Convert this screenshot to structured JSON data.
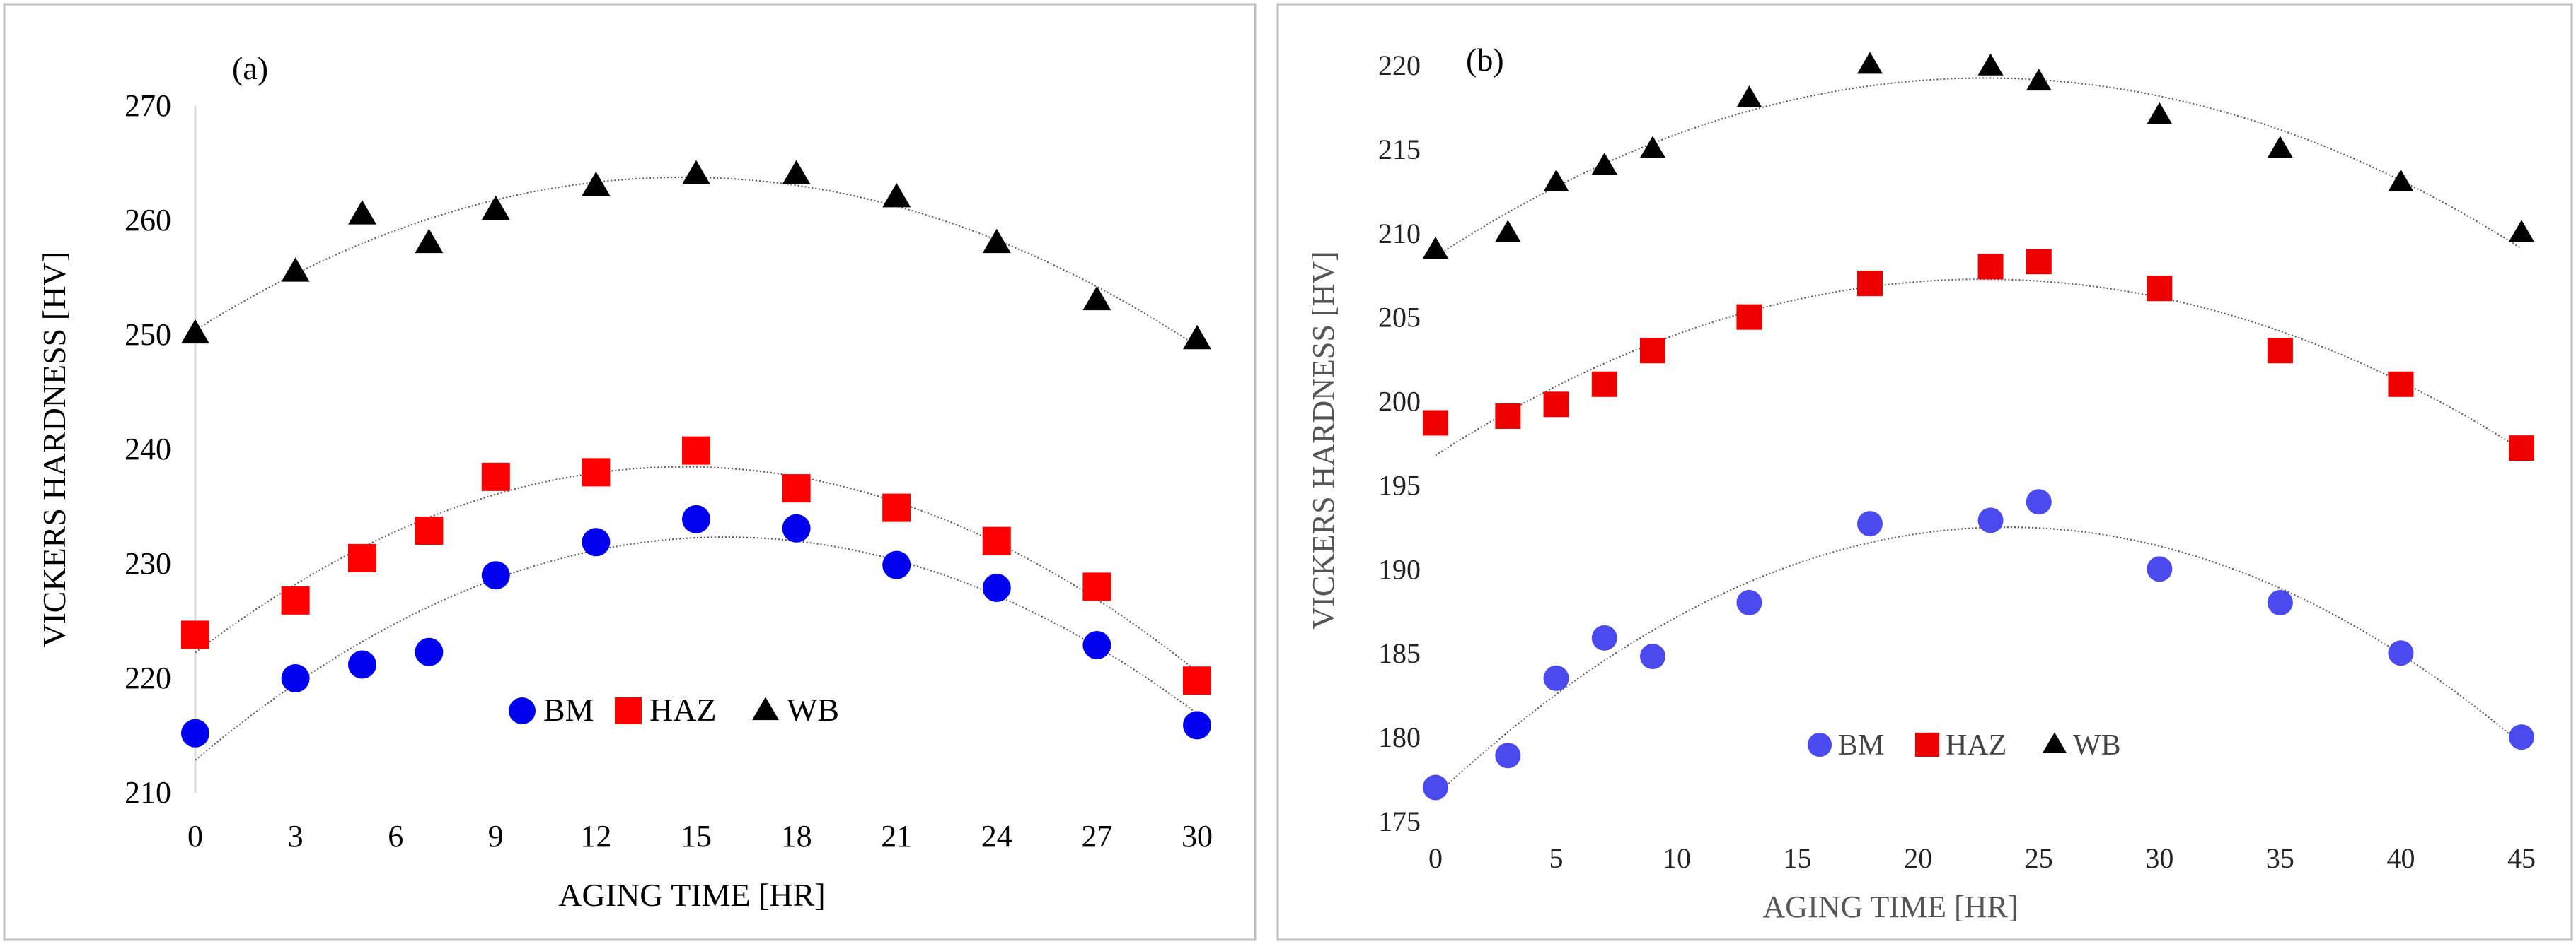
{
  "chart_data": [
    {
      "type": "scatter",
      "panel_label": "(a)",
      "xlabel": "AGING TIME [HR]",
      "ylabel": "VICKERS HARDNESS [HV]",
      "xlim": [
        0,
        30
      ],
      "ylim": [
        210,
        270
      ],
      "xticks": [
        "0",
        "3",
        "6",
        "9",
        "12",
        "15",
        "18",
        "21",
        "24",
        "27",
        "30"
      ],
      "yticks": [
        "210",
        "220",
        "230",
        "240",
        "250",
        "260",
        "270"
      ],
      "legend_position": "bottom-center",
      "trendline": "polynomial",
      "series": [
        {
          "name": "BM",
          "marker": "circle",
          "color": "#0000ee",
          "x": [
            0,
            3,
            5,
            7,
            9,
            12,
            15,
            18,
            21,
            24,
            27,
            30
          ],
          "y": [
            215.2,
            220,
            221.2,
            222.3,
            229,
            231.9,
            233.9,
            233.1,
            229.9,
            227.9,
            222.9,
            215.9
          ]
        },
        {
          "name": "HAZ",
          "marker": "square",
          "color": "#ff0000",
          "x": [
            0,
            3,
            5,
            7,
            9,
            12,
            15,
            18,
            21,
            24,
            27,
            30
          ],
          "y": [
            223.8,
            226.8,
            230.5,
            232.9,
            237.6,
            238,
            239.9,
            236.6,
            234.9,
            232,
            228,
            219.8
          ]
        },
        {
          "name": "WB",
          "marker": "triangle",
          "color": "#000000",
          "x": [
            0,
            3,
            5,
            7,
            9,
            12,
            15,
            18,
            21,
            24,
            27,
            30
          ],
          "y": [
            250.1,
            255.5,
            260.5,
            258,
            260.9,
            263,
            264,
            264,
            262,
            258,
            253,
            249.6
          ]
        }
      ]
    },
    {
      "type": "scatter",
      "panel_label": "(b)",
      "xlabel": "AGING TIME [HR]",
      "ylabel": "VICKERS HARDNESS [HV]",
      "xlim": [
        0,
        45
      ],
      "ylim": [
        175,
        220
      ],
      "xticks": [
        "0",
        "5",
        "10",
        "15",
        "20",
        "25",
        "30",
        "35",
        "40",
        "45"
      ],
      "yticks": [
        "175",
        "180",
        "185",
        "190",
        "195",
        "200",
        "205",
        "210",
        "215",
        "220"
      ],
      "legend_position": "bottom-center",
      "trendline": "polynomial",
      "series": [
        {
          "name": "BM",
          "marker": "circle",
          "color": "#4a4aee",
          "x": [
            0,
            3,
            5,
            7,
            9,
            13,
            18,
            23,
            25,
            30,
            35,
            40,
            45
          ],
          "y": [
            177,
            178.9,
            183.5,
            185.9,
            184.8,
            188,
            192.7,
            192.9,
            194,
            190,
            188,
            185,
            180
          ]
        },
        {
          "name": "HAZ",
          "marker": "square",
          "color": "#ee0000",
          "x": [
            0,
            3,
            5,
            7,
            9,
            13,
            18,
            23,
            25,
            30,
            35,
            40,
            45
          ],
          "y": [
            198.7,
            199.1,
            199.8,
            201,
            203,
            205,
            207,
            208,
            208.3,
            206.7,
            203,
            201,
            197.2
          ]
        },
        {
          "name": "WB",
          "marker": "triangle",
          "color": "#000000",
          "x": [
            0,
            3,
            5,
            7,
            9,
            13,
            18,
            23,
            25,
            30,
            35,
            40,
            45
          ],
          "y": [
            209,
            210,
            213,
            214,
            215,
            218,
            220,
            219.9,
            219,
            217,
            215,
            213,
            210
          ]
        }
      ]
    }
  ]
}
